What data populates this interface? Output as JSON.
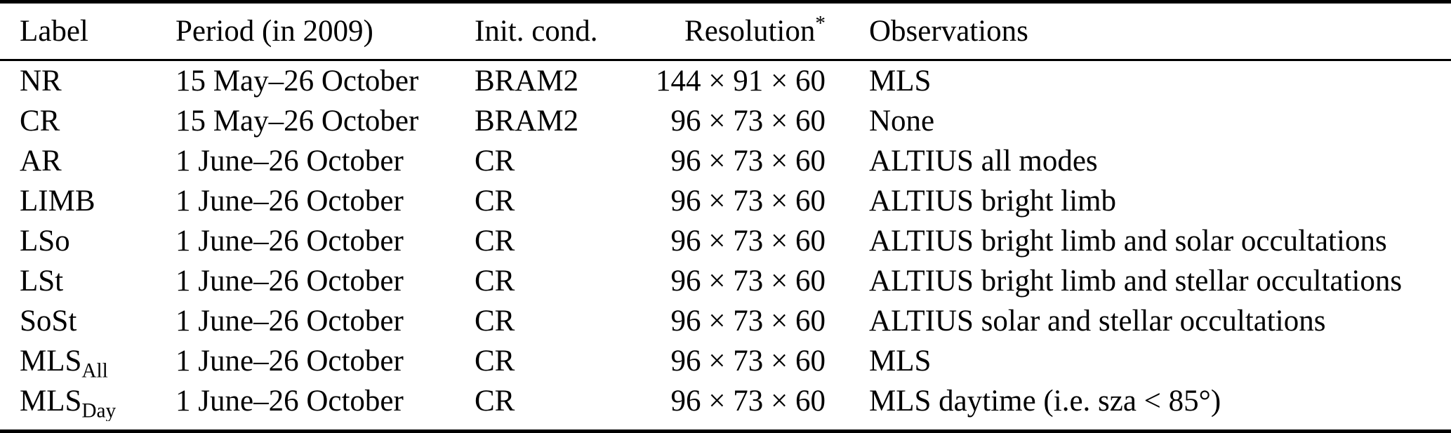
{
  "colors": {
    "text": "#000000",
    "background": "#ffffff",
    "rule": "#000000"
  },
  "table": {
    "headers": {
      "label": "Label",
      "period": "Period (in 2009)",
      "init_cond": "Init. cond.",
      "resolution": "Resolution",
      "resolution_sup": "*",
      "observations": "Observations"
    },
    "rows": [
      {
        "label": "NR",
        "label_sub": "",
        "period": "15 May–26 October",
        "init_cond": "BRAM2",
        "resolution": "144 × 91 × 60",
        "observations": "MLS"
      },
      {
        "label": "CR",
        "label_sub": "",
        "period": "15 May–26 October",
        "init_cond": "BRAM2",
        "resolution": "96 × 73 × 60",
        "observations": "None"
      },
      {
        "label": "AR",
        "label_sub": "",
        "period": "1 June–26 October",
        "init_cond": "CR",
        "resolution": "96 × 73 × 60",
        "observations": "ALTIUS all modes"
      },
      {
        "label": "LIMB",
        "label_sub": "",
        "period": "1 June–26 October",
        "init_cond": "CR",
        "resolution": "96 × 73 × 60",
        "observations": "ALTIUS bright limb"
      },
      {
        "label": "LSo",
        "label_sub": "",
        "period": "1 June–26 October",
        "init_cond": "CR",
        "resolution": "96 × 73 × 60",
        "observations": "ALTIUS bright limb and solar occultations"
      },
      {
        "label": "LSt",
        "label_sub": "",
        "period": "1 June–26 October",
        "init_cond": "CR",
        "resolution": "96 × 73 × 60",
        "observations": "ALTIUS bright limb and stellar occultations"
      },
      {
        "label": "SoSt",
        "label_sub": "",
        "period": "1 June–26 October",
        "init_cond": "CR",
        "resolution": "96 × 73 × 60",
        "observations": "ALTIUS solar and stellar occultations"
      },
      {
        "label": "MLS",
        "label_sub": "All",
        "period": "1 June–26 October",
        "init_cond": "CR",
        "resolution": "96 × 73 × 60",
        "observations": "MLS"
      },
      {
        "label": "MLS",
        "label_sub": "Day",
        "period": "1 June–26 October",
        "init_cond": "CR",
        "resolution": "96 × 73 × 60",
        "observations": "MLS daytime (i.e. sza < 85°)"
      }
    ]
  }
}
